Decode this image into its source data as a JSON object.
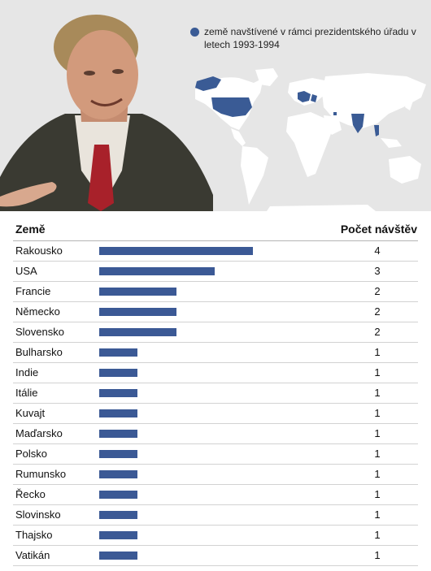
{
  "legend": {
    "label": "země navštívené v rámci prezidentského úřadu v letech 1993-1994"
  },
  "colors": {
    "bar": "#3b5995",
    "highlight": "#3a5b95",
    "land": "#ffffff",
    "background": "#e6e6e6"
  },
  "chart_data": {
    "type": "bar",
    "orientation": "horizontal",
    "columns": [
      "Země",
      "Počet návštěv"
    ],
    "categories": [
      "Rakousko",
      "USA",
      "Francie",
      "Německo",
      "Slovensko",
      "Bulharsko",
      "Indie",
      "Itálie",
      "Kuvajt",
      "Maďarsko",
      "Polsko",
      "Rumunsko",
      "Řecko",
      "Slovinsko",
      "Thajsko",
      "Vatikán"
    ],
    "values": [
      4,
      3,
      2,
      2,
      2,
      1,
      1,
      1,
      1,
      1,
      1,
      1,
      1,
      1,
      1,
      1
    ],
    "xlim": [
      0,
      4
    ]
  }
}
